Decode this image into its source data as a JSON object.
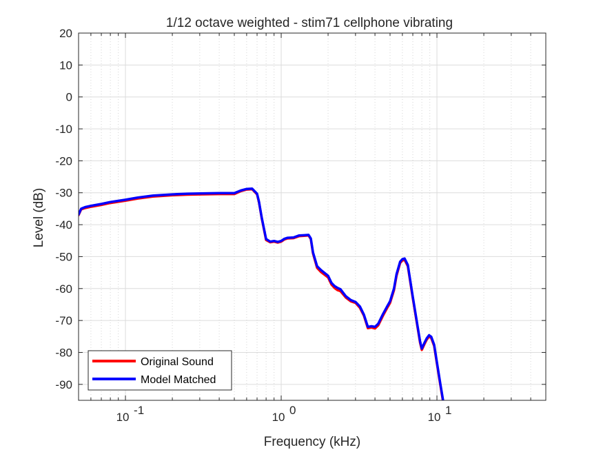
{
  "chart_data": {
    "type": "line",
    "title": "1/12 octave weighted - stim71 cellphone vibrating",
    "xlabel": "Frequency (kHz)",
    "ylabel": "Level (dB)",
    "xscale": "log",
    "xlim": [
      0.05,
      50
    ],
    "ylim": [
      -95,
      20
    ],
    "grid": true,
    "legend": "bottom-left",
    "xticks": [
      {
        "value": 0.1,
        "base": "10",
        "exp": "-1"
      },
      {
        "value": 1,
        "base": "10",
        "exp": "0"
      },
      {
        "value": 10,
        "base": "10",
        "exp": "1"
      }
    ],
    "yticks": [
      20,
      10,
      0,
      -10,
      -20,
      -30,
      -40,
      -50,
      -60,
      -70,
      -80,
      -90
    ],
    "series": [
      {
        "name": "Original Sound",
        "color": "#ff0000",
        "x": [
          0.05,
          0.052,
          0.055,
          0.06,
          0.07,
          0.08,
          0.1,
          0.12,
          0.15,
          0.2,
          0.25,
          0.3,
          0.4,
          0.5,
          0.55,
          0.6,
          0.65,
          0.7,
          0.72,
          0.75,
          0.8,
          0.85,
          0.9,
          0.95,
          1.0,
          1.05,
          1.1,
          1.2,
          1.3,
          1.4,
          1.5,
          1.55,
          1.6,
          1.7,
          1.8,
          2.0,
          2.1,
          2.2,
          2.3,
          2.4,
          2.6,
          2.8,
          3.0,
          3.2,
          3.4,
          3.6,
          3.8,
          4.0,
          4.2,
          4.5,
          4.8,
          5.0,
          5.3,
          5.5,
          5.8,
          6.0,
          6.2,
          6.5,
          7.0,
          7.5,
          7.8,
          8.0,
          8.3,
          8.6,
          8.9,
          9.2,
          9.6,
          10.0,
          10.5,
          11.0
        ],
        "y": [
          -37,
          -35.2,
          -34.8,
          -34.4,
          -33.8,
          -33.2,
          -32.5,
          -31.8,
          -31.2,
          -30.8,
          -30.6,
          -30.5,
          -30.4,
          -30.4,
          -29.5,
          -29,
          -28.9,
          -30.5,
          -33,
          -38,
          -44.8,
          -45.5,
          -45.3,
          -45.6,
          -45.3,
          -44.6,
          -44.3,
          -44.2,
          -43.6,
          -43.5,
          -43.4,
          -44.5,
          -49,
          -53.5,
          -54.8,
          -56.5,
          -58.7,
          -59.8,
          -60.5,
          -60.8,
          -62.8,
          -64,
          -64.5,
          -66,
          -68.5,
          -72.4,
          -72.2,
          -72.5,
          -71.5,
          -68.5,
          -66,
          -64.5,
          -60.5,
          -56,
          -52,
          -51.2,
          -51,
          -53,
          -63,
          -72,
          -77,
          -79.2,
          -77.5,
          -76,
          -75,
          -75.5,
          -78,
          -83.5,
          -90,
          -96
        ]
      },
      {
        "name": "Model Matched",
        "color": "#0000ff",
        "x": [
          0.05,
          0.052,
          0.055,
          0.06,
          0.07,
          0.08,
          0.1,
          0.12,
          0.15,
          0.2,
          0.25,
          0.3,
          0.4,
          0.5,
          0.55,
          0.6,
          0.65,
          0.7,
          0.72,
          0.75,
          0.8,
          0.85,
          0.9,
          0.95,
          1.0,
          1.05,
          1.1,
          1.2,
          1.3,
          1.4,
          1.5,
          1.55,
          1.6,
          1.7,
          1.8,
          2.0,
          2.1,
          2.2,
          2.3,
          2.4,
          2.6,
          2.8,
          3.0,
          3.2,
          3.4,
          3.6,
          3.8,
          4.0,
          4.2,
          4.5,
          4.8,
          5.0,
          5.3,
          5.5,
          5.8,
          6.0,
          6.2,
          6.5,
          7.0,
          7.5,
          7.8,
          8.0,
          8.3,
          8.6,
          8.9,
          9.2,
          9.6,
          10.0,
          10.5,
          11.0
        ],
        "y": [
          -36.8,
          -35,
          -34.5,
          -34.1,
          -33.5,
          -32.9,
          -32.2,
          -31.5,
          -30.9,
          -30.5,
          -30.3,
          -30.2,
          -30.1,
          -30.1,
          -29.3,
          -28.8,
          -28.7,
          -30.3,
          -32.8,
          -37.8,
          -44.5,
          -45.3,
          -45.1,
          -45.4,
          -45.1,
          -44.4,
          -44.1,
          -44,
          -43.4,
          -43.3,
          -43.2,
          -44.3,
          -48.7,
          -53,
          -54.2,
          -56,
          -58.2,
          -59.2,
          -59.8,
          -60.2,
          -62.4,
          -63.6,
          -64.2,
          -65.6,
          -68.2,
          -72,
          -71.8,
          -72,
          -71,
          -68,
          -65.5,
          -64,
          -60,
          -55.5,
          -51.6,
          -50.8,
          -50.6,
          -52.6,
          -62.6,
          -71.6,
          -76.6,
          -78.8,
          -77.1,
          -75.6,
          -74.6,
          -75.1,
          -77.6,
          -83.1,
          -89.6,
          -95.6
        ]
      }
    ]
  }
}
